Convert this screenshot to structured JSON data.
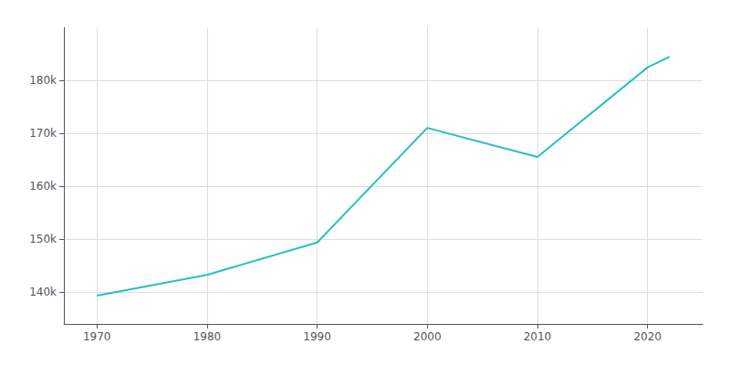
{
  "chart_data": {
    "type": "line",
    "x": [
      1970,
      1980,
      1990,
      2000,
      2010,
      2020,
      2022
    ],
    "values": [
      139357,
      143271,
      149377,
      171019,
      165521,
      182437,
      184463
    ],
    "color": "#2abfbf",
    "xlim": [
      1967,
      2025
    ],
    "xticks": [
      1970,
      1980,
      1990,
      2000,
      2010,
      2020
    ],
    "ylim": [
      134000,
      190000
    ],
    "yticks": [
      {
        "value": 140000,
        "label": "140k"
      },
      {
        "value": 150000,
        "label": "150k"
      },
      {
        "value": 160000,
        "label": "160k"
      },
      {
        "value": 170000,
        "label": "170k"
      },
      {
        "value": 180000,
        "label": "180k"
      }
    ],
    "grid": true
  }
}
